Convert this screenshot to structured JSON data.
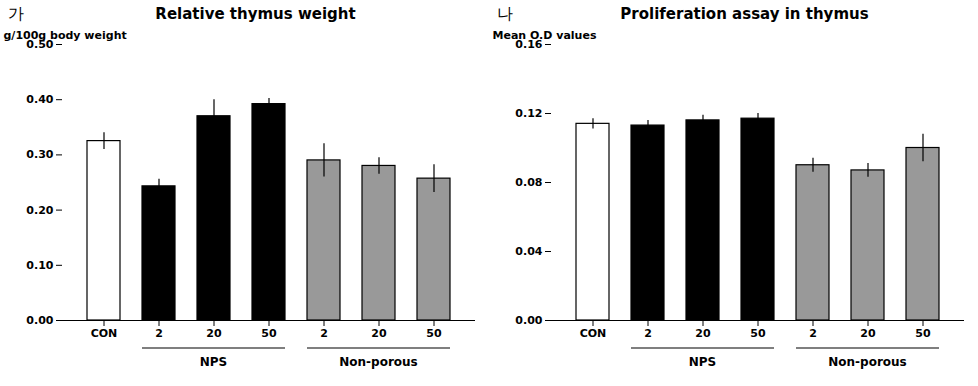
{
  "chart_data": [
    {
      "type": "bar",
      "title": "Relative thymus weight",
      "ylabel": "g/100g body weight",
      "annotations": [
        {
          "text": "가"
        }
      ],
      "categories": [
        "CON",
        "2",
        "20",
        "50",
        "2",
        "20",
        "50"
      ],
      "values": [
        0.325,
        0.243,
        0.37,
        0.392,
        0.29,
        0.28,
        0.257
      ],
      "errors": [
        0.015,
        0.013,
        0.03,
        0.01,
        0.03,
        0.015,
        0.025
      ],
      "colors": [
        "white",
        "black",
        "black",
        "black",
        "#999999",
        "#999999",
        "#999999"
      ],
      "groups": [
        {
          "label": "NPS",
          "start": 1,
          "end": 3
        },
        {
          "label": "Non-porous",
          "start": 4,
          "end": 6
        }
      ],
      "ylim": [
        0,
        0.5
      ],
      "yticks": [
        0,
        0.1,
        0.2,
        0.3,
        0.4,
        0.5
      ],
      "grid": false
    },
    {
      "type": "bar",
      "title": "Proliferation assay in thymus",
      "ylabel": "Mean O.D values",
      "annotations": [
        {
          "text": "나"
        }
      ],
      "categories": [
        "CON",
        "2",
        "20",
        "50",
        "2",
        "20",
        "50"
      ],
      "values": [
        0.114,
        0.113,
        0.116,
        0.117,
        0.09,
        0.087,
        0.1
      ],
      "errors": [
        0.003,
        0.003,
        0.003,
        0.003,
        0.004,
        0.004,
        0.008
      ],
      "colors": [
        "white",
        "black",
        "black",
        "black",
        "#999999",
        "#999999",
        "#999999"
      ],
      "groups": [
        {
          "label": "NPS",
          "start": 1,
          "end": 3
        },
        {
          "label": "Non-porous",
          "start": 4,
          "end": 6
        }
      ],
      "ylim": [
        0,
        0.16
      ],
      "yticks": [
        0,
        0.04,
        0.08,
        0.12,
        0.16
      ],
      "grid": false
    }
  ]
}
